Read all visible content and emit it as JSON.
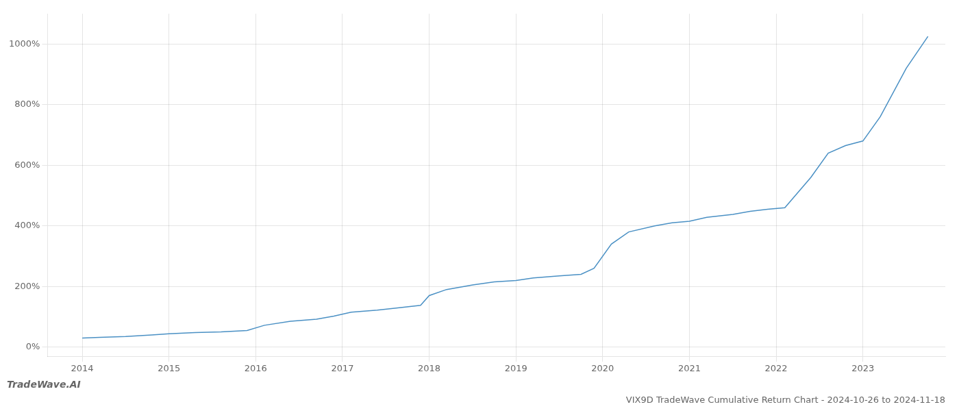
{
  "chart_data": {
    "type": "line",
    "title": "VIX9D TradeWave Cumulative Return Chart - 2024-10-26 to 2024-11-18",
    "annotations": [
      "TradeWave.AI"
    ],
    "x": [
      2014.0,
      2014.2,
      2014.5,
      2014.8,
      2015.0,
      2015.3,
      2015.6,
      2015.9,
      2016.1,
      2016.4,
      2016.7,
      2016.9,
      2017.1,
      2017.4,
      2017.6,
      2017.9,
      2018.0,
      2018.2,
      2018.5,
      2018.75,
      2019.0,
      2019.2,
      2019.5,
      2019.75,
      2019.9,
      2020.1,
      2020.3,
      2020.6,
      2020.8,
      2021.0,
      2021.2,
      2021.5,
      2021.7,
      2021.9,
      2022.1,
      2022.4,
      2022.6,
      2022.8,
      2023.0,
      2023.2,
      2023.5,
      2023.75
    ],
    "values": [
      30,
      32,
      35,
      40,
      44,
      48,
      50,
      55,
      72,
      85,
      92,
      102,
      115,
      122,
      128,
      138,
      170,
      190,
      205,
      215,
      220,
      228,
      235,
      240,
      260,
      340,
      380,
      400,
      410,
      415,
      428,
      438,
      448,
      455,
      460,
      560,
      640,
      665,
      680,
      760,
      920,
      1025
    ],
    "color": "#4a90c4",
    "xlim": [
      2013.6,
      2023.95
    ],
    "ylim": [
      -30,
      1100
    ],
    "xticks": [
      2014,
      2015,
      2016,
      2017,
      2018,
      2019,
      2020,
      2021,
      2022,
      2023
    ],
    "yticks": [
      {
        "value": 0,
        "label": "0%"
      },
      {
        "value": 200,
        "label": "200%"
      },
      {
        "value": 400,
        "label": "400%"
      },
      {
        "value": 600,
        "label": "600%"
      },
      {
        "value": 800,
        "label": "800%"
      },
      {
        "value": 1000,
        "label": "1000%"
      }
    ],
    "grid": true
  }
}
